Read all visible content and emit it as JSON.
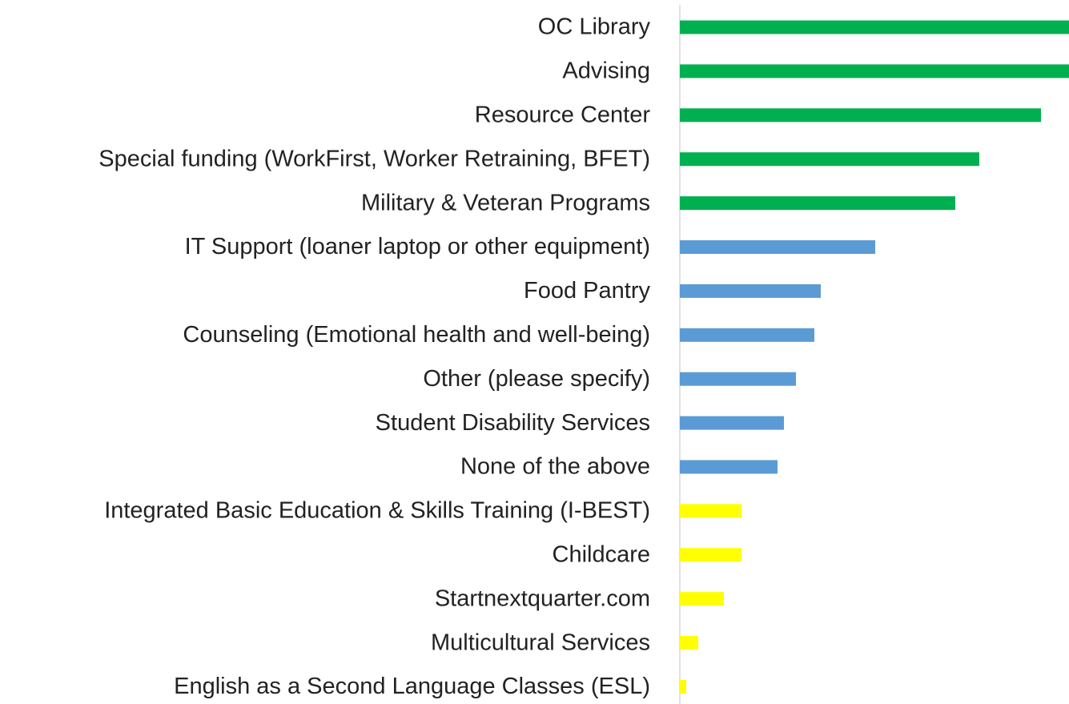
{
  "chart_data": {
    "type": "barh",
    "categories": [
      "OC Library",
      "Advising",
      "Resource Center",
      "Special funding (WorkFirst, Worker Retraining, BFET)",
      "Military & Veteran Programs",
      "IT Support (loaner laptop or other equipment)",
      "Food Pantry",
      "Counseling (Emotional health and well-being)",
      "Other (please specify)",
      "Student Disability Services",
      "None of the above",
      "Integrated Basic Education & Skills Training (I-BEST)",
      "Childcare",
      "Startnextquarter.com",
      "Multicultural Services",
      "English as a Second Language Classes (ESL)"
    ],
    "values": [
      486,
      486,
      451,
      374,
      344,
      244,
      176,
      168,
      145,
      130,
      122,
      77,
      77,
      55,
      23,
      8
    ],
    "colors": [
      "#00b050",
      "#00b050",
      "#00b050",
      "#00b050",
      "#00b050",
      "#5b9bd5",
      "#5b9bd5",
      "#5b9bd5",
      "#5b9bd5",
      "#5b9bd5",
      "#5b9bd5",
      "#ffff00",
      "#ffff00",
      "#ffff00",
      "#ffff00",
      "#ffff00"
    ],
    "xlim": [
      0,
      486
    ]
  }
}
